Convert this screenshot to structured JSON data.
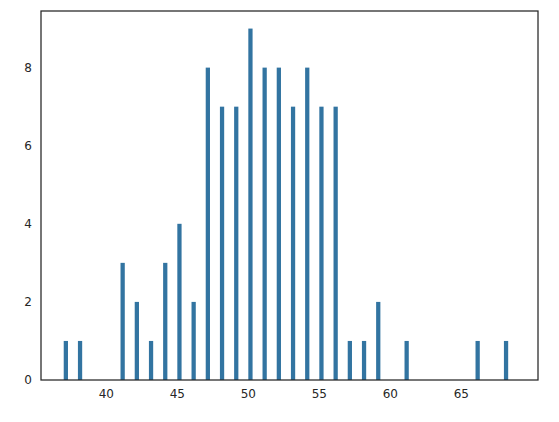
{
  "chart_data": {
    "type": "histogram",
    "bins": [
      37,
      37.3,
      38,
      38.3,
      41,
      41.3,
      42,
      42.3,
      43,
      43.3,
      44,
      44.3,
      45,
      45.3,
      46,
      46.3,
      47,
      47.3,
      48,
      48.3,
      49,
      49.3,
      50,
      50.3,
      51,
      51.3,
      52,
      52.3,
      53,
      53.3,
      54,
      54.3,
      55,
      55.3,
      56,
      56.3,
      57,
      57.3,
      58,
      58.3,
      59,
      59.3,
      61,
      61.3,
      66,
      66.3,
      68,
      68.3
    ],
    "values": [
      1,
      0,
      1,
      0,
      3,
      0,
      2,
      0,
      1,
      0,
      3,
      0,
      4,
      0,
      2,
      0,
      8,
      0,
      7,
      0,
      7,
      0,
      9,
      0,
      8,
      0,
      8,
      0,
      7,
      0,
      8,
      0,
      7,
      0,
      7,
      0,
      1,
      0,
      1,
      0,
      2,
      0,
      1,
      0,
      1,
      0,
      1
    ],
    "color": "#3274a1",
    "xlim": [
      35.4,
      70.4
    ],
    "xticks": [
      40,
      45,
      50,
      55,
      60,
      65
    ],
    "ylim": [
      0,
      9.45
    ],
    "yticks": [
      0,
      2,
      4,
      6,
      8
    ],
    "grid": false
  }
}
